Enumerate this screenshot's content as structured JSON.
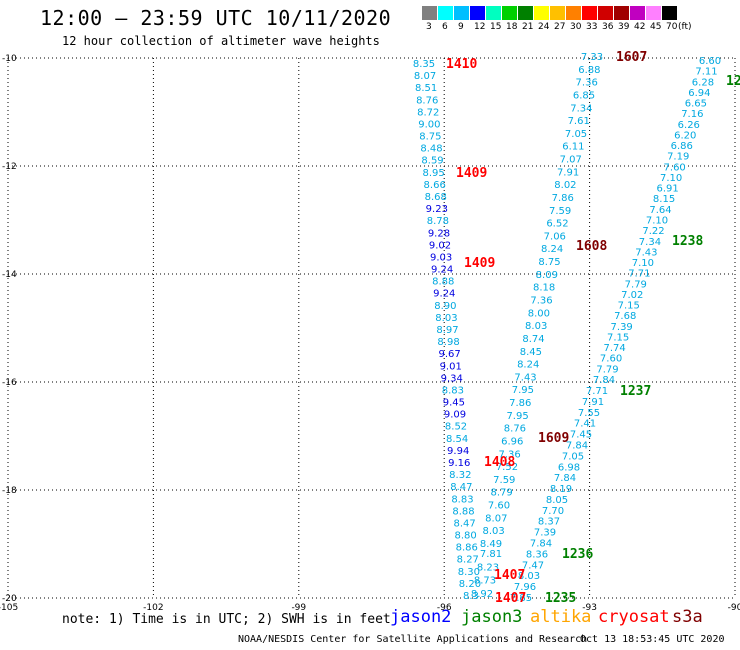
{
  "title": "12:00 — 23:59 UTC 10/11/2020",
  "subtitle": "12 hour collection of altimeter wave heights",
  "color_scale": {
    "labels": [
      "3",
      "6",
      "9",
      "12",
      "15",
      "18",
      "21",
      "24",
      "27",
      "30",
      "33",
      "36",
      "39",
      "42",
      "45",
      "70",
      "(ft)"
    ],
    "colors": [
      "#808080",
      "#00ffff",
      "#00bfff",
      "#0000ff",
      "#00ffc0",
      "#00d000",
      "#008000",
      "#ffff00",
      "#ffc000",
      "#ff8000",
      "#ff0000",
      "#d00000",
      "#a00000",
      "#c000c0",
      "#ff80ff",
      "#000000"
    ]
  },
  "map": {
    "lat_labels": [
      "-10",
      "-12",
      "-14",
      "-16",
      "-18",
      "-20"
    ],
    "lon_labels": [
      "-105",
      "-102",
      "-99",
      "-96",
      "-93",
      "-90"
    ]
  },
  "tracks": [
    {
      "values": [
        "8.35",
        "8.07",
        "8.51",
        "8.76",
        "8.72",
        "9.00",
        "8.75",
        "8.48",
        "8.59",
        "8.95",
        "8.66",
        "8.68",
        "9.23",
        "8.78",
        "9.28",
        "9.02",
        "9.03",
        "9.24",
        "8.88",
        "9.24",
        "8.90",
        "8.03",
        "8.97",
        "8.98",
        "9.67",
        "9.01",
        "9.34",
        "8.83",
        "9.45",
        "9.09",
        "8.52",
        "8.54",
        "9.94",
        "9.16",
        "8.32",
        "8.47",
        "8.83",
        "8.88",
        "8.47",
        "8.80",
        "8.86",
        "8.27",
        "8.30",
        "8.20",
        "8.3"
      ],
      "colors": [
        "c",
        "c",
        "c",
        "c",
        "c",
        "c",
        "c",
        "c",
        "c",
        "c",
        "c",
        "c",
        "b",
        "c",
        "b",
        "b",
        "b",
        "b",
        "c",
        "b",
        "c",
        "c",
        "c",
        "c",
        "b",
        "b",
        "b",
        "c",
        "b",
        "b",
        "c",
        "c",
        "b",
        "b",
        "c",
        "c",
        "c",
        "c",
        "c",
        "c",
        "c",
        "c",
        "c",
        "c",
        "c"
      ]
    },
    {
      "values": [
        "7.81",
        "8.23",
        "8.73",
        "8.92"
      ],
      "colors": [
        "c",
        "c",
        "c",
        "c"
      ]
    },
    {
      "values": [
        "7.33",
        "6.88",
        "7.36",
        "6.85",
        "7.34",
        "7.61",
        "7.05",
        "6.11",
        "7.07",
        "7.91",
        "8.02",
        "7.86",
        "7.59",
        "6.52",
        "7.06",
        "8.24",
        "8.75",
        "8.09",
        "8.18",
        "7.36",
        "8.00",
        "8.03",
        "8.74",
        "8.45",
        "8.24",
        "7.43",
        "7.95",
        "7.86",
        "7.95",
        "8.76",
        "6.96",
        "7.36",
        "7.52",
        "7.59",
        "8.79",
        "7.60",
        "8.07",
        "8.03",
        "8.49"
      ],
      "colors": [
        "c",
        "c",
        "c",
        "c",
        "c",
        "c",
        "c",
        "c",
        "c",
        "c",
        "c",
        "c",
        "c",
        "c",
        "c",
        "c",
        "c",
        "c",
        "c",
        "c",
        "c",
        "c",
        "c",
        "c",
        "c",
        "c",
        "c",
        "c",
        "c",
        "c",
        "c",
        "c",
        "c",
        "c",
        "c",
        "c",
        "c",
        "c",
        "c"
      ]
    },
    {
      "values": [
        "7.71",
        "7.91",
        "7.55",
        "7.41",
        "7.45",
        "7.84",
        "7.05",
        "6.98",
        "7.84",
        "8.19",
        "8.05",
        "7.70",
        "8.37",
        "7.39",
        "7.84",
        "8.36",
        "7.47",
        "8.03",
        "7.96",
        "7.85"
      ],
      "colors": [
        "c",
        "c",
        "c",
        "c",
        "c",
        "c",
        "c",
        "c",
        "c",
        "c",
        "c",
        "c",
        "c",
        "c",
        "c",
        "c",
        "c",
        "c",
        "c",
        "c"
      ]
    },
    {
      "values": [
        "6.60",
        "7.11",
        "6.28",
        "6.94",
        "6.65",
        "7.16",
        "6.26",
        "6.20",
        "6.86",
        "7.19",
        "7.60",
        "7.10",
        "6.91",
        "8.15",
        "7.64",
        "7.10",
        "7.22",
        "7.34",
        "7.43",
        "7.10",
        "7.71",
        "7.79",
        "7.02",
        "7.15",
        "7.68",
        "7.39",
        "7.15",
        "7.74",
        "7.60",
        "7.79",
        "7.84"
      ],
      "colors": [
        "c",
        "c",
        "c",
        "c",
        "c",
        "c",
        "c",
        "c",
        "c",
        "c",
        "c",
        "c",
        "c",
        "c",
        "c",
        "c",
        "c",
        "c",
        "c",
        "c",
        "c",
        "c",
        "c",
        "c",
        "c",
        "c",
        "c",
        "c",
        "c",
        "c",
        "c"
      ]
    }
  ],
  "pass_labels": [
    {
      "text": "1410",
      "color": "#ff0000"
    },
    {
      "text": "1409",
      "color": "#ff0000"
    },
    {
      "text": "1409",
      "color": "#ff0000"
    },
    {
      "text": "1408",
      "color": "#ff0000"
    },
    {
      "text": "1407",
      "color": "#ff0000"
    },
    {
      "text": "1407",
      "color": "#ff0000"
    },
    {
      "text": "1607",
      "color": "#800000"
    },
    {
      "text": "1608",
      "color": "#800000"
    },
    {
      "text": "1609",
      "color": "#800000"
    },
    {
      "text": "1238",
      "color": "#008000"
    },
    {
      "text": "1237",
      "color": "#008000"
    },
    {
      "text": "1236",
      "color": "#008000"
    },
    {
      "text": "1235",
      "color": "#008000"
    },
    {
      "text": "12",
      "color": "#008000"
    }
  ],
  "note": "note: 1) Time is in UTC; 2) SWH is in feet",
  "legend": [
    {
      "name": "jason2",
      "color": "#0000ff"
    },
    {
      "name": "jason3",
      "color": "#008000"
    },
    {
      "name": "altika",
      "color": "#ffa500"
    },
    {
      "name": "cryosat",
      "color": "#ff0000"
    },
    {
      "name": "s3a",
      "color": "#800000"
    }
  ],
  "credit": "NOAA/NESDIS Center for Satellite Applications and Research",
  "timestamp": "Oct 13 18:53:45 UTC 2020"
}
